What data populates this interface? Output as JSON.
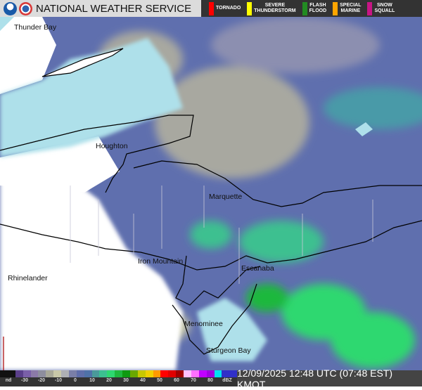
{
  "header": {
    "title": "NATIONAL WEATHER SERVICE",
    "logos": [
      "noaa-logo",
      "nws-logo"
    ],
    "warnings": [
      {
        "label": "TORNADO",
        "color": "#ff0000"
      },
      {
        "label": "SEVERE\nTHUNDERSTORM",
        "color": "#ffff00"
      },
      {
        "label": "FLASH\nFLOOD",
        "color": "#228b22"
      },
      {
        "label": "SPECIAL\nMARINE",
        "color": "#ffa500"
      },
      {
        "label": "SNOW\nSQUALL",
        "color": "#c71585"
      }
    ]
  },
  "map": {
    "cities": [
      "Thunder Bay",
      "Houghton",
      "Marquette",
      "Iron Mountain",
      "Escanaba",
      "Rhinelander",
      "Menominee",
      "Sturgeon Bay"
    ]
  },
  "legend": {
    "ticks": [
      "nd",
      "-30",
      "-20",
      "-10",
      "0",
      "10",
      "20",
      "30",
      "40",
      "50",
      "60",
      "70",
      "80",
      "dBZ"
    ],
    "colors": [
      "#111",
      "#111",
      "#5a3f8a",
      "#7a5fa8",
      "#8c7aa8",
      "#8e8e9e",
      "#a8a898",
      "#c8c8a8",
      "#aeb0b4",
      "#7a7fa8",
      "#5f6eaa",
      "#4f72a8",
      "#4a9a9a",
      "#3cc090",
      "#2ed870",
      "#1fb83e",
      "#0f9a10",
      "#6aa800",
      "#c8c800",
      "#f0d000",
      "#ff9a00",
      "#ff0000",
      "#e00000",
      "#a00000",
      "#ffc0ff",
      "#ff70ff",
      "#c000ff",
      "#a000e0",
      "#00e0f0",
      "#3030c8",
      "#3030c8"
    ]
  },
  "timestamp": "12/09/2025 12:48 UTC (07:48 EST) KMOT"
}
